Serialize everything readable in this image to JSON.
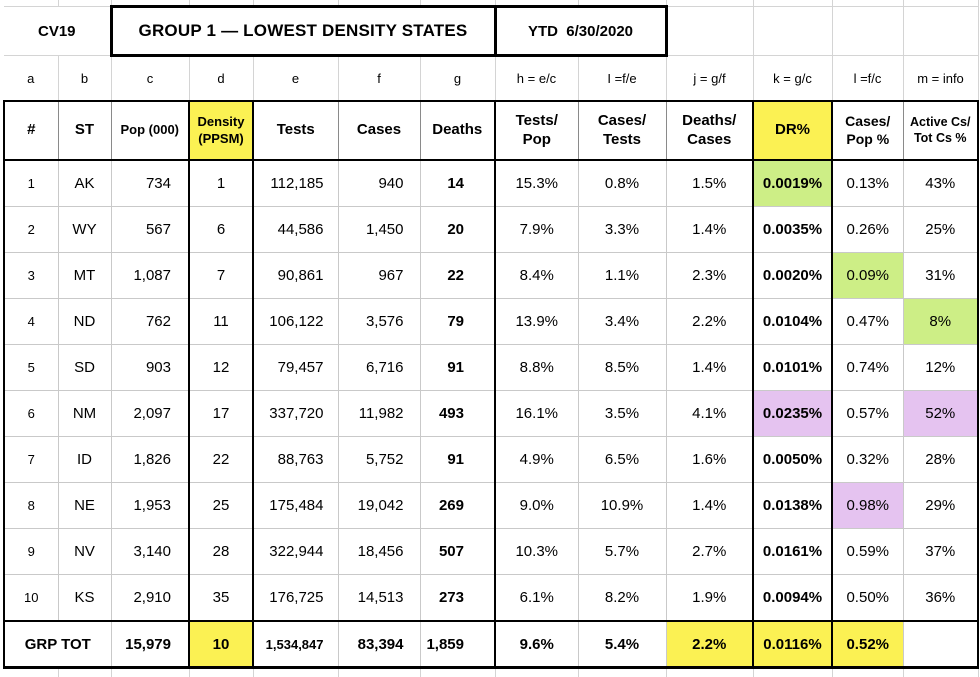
{
  "sheet": {
    "corner_label": "CV19",
    "title": "GROUP 1 — LOWEST DENSITY STATES",
    "period": "YTD  6/30/2020"
  },
  "formula_row": [
    "a",
    "b",
    "c",
    "d",
    "e",
    "f",
    "g",
    "h = e/c",
    "I =f/e",
    "j = g/f",
    "k = g/c",
    "l =f/c",
    "m = info"
  ],
  "header_row": [
    "#",
    "ST",
    "Pop (000)",
    "Density\n(PPSM)",
    "Tests",
    "Cases",
    "Deaths",
    "Tests/\nPop",
    "Cases/\nTests",
    "Deaths/\nCases",
    "DR%",
    "Cases/\nPop %",
    "Active Cs/\nTot Cs %"
  ],
  "rows": [
    [
      "1",
      "AK",
      "734",
      "1",
      "112,185",
      "940",
      "14",
      "15.3%",
      "0.8%",
      "1.5%",
      "0.0019%",
      "0.13%",
      "43%"
    ],
    [
      "2",
      "WY",
      "567",
      "6",
      "44,586",
      "1,450",
      "20",
      "7.9%",
      "3.3%",
      "1.4%",
      "0.0035%",
      "0.26%",
      "25%"
    ],
    [
      "3",
      "MT",
      "1,087",
      "7",
      "90,861",
      "967",
      "22",
      "8.4%",
      "1.1%",
      "2.3%",
      "0.0020%",
      "0.09%",
      "31%"
    ],
    [
      "4",
      "ND",
      "762",
      "11",
      "106,122",
      "3,576",
      "79",
      "13.9%",
      "3.4%",
      "2.2%",
      "0.0104%",
      "0.47%",
      "8%"
    ],
    [
      "5",
      "SD",
      "903",
      "12",
      "79,457",
      "6,716",
      "91",
      "8.8%",
      "8.5%",
      "1.4%",
      "0.0101%",
      "0.74%",
      "12%"
    ],
    [
      "6",
      "NM",
      "2,097",
      "17",
      "337,720",
      "11,982",
      "493",
      "16.1%",
      "3.5%",
      "4.1%",
      "0.0235%",
      "0.57%",
      "52%"
    ],
    [
      "7",
      "ID",
      "1,826",
      "22",
      "88,763",
      "5,752",
      "91",
      "4.9%",
      "6.5%",
      "1.6%",
      "0.0050%",
      "0.32%",
      "28%"
    ],
    [
      "8",
      "NE",
      "1,953",
      "25",
      "175,484",
      "19,042",
      "269",
      "9.0%",
      "10.9%",
      "1.4%",
      "0.0138%",
      "0.98%",
      "29%"
    ],
    [
      "9",
      "NV",
      "3,140",
      "28",
      "322,944",
      "18,456",
      "507",
      "10.3%",
      "5.7%",
      "2.7%",
      "0.0161%",
      "0.59%",
      "37%"
    ],
    [
      "10",
      "KS",
      "2,910",
      "35",
      "176,725",
      "14,513",
      "273",
      "6.1%",
      "8.2%",
      "1.9%",
      "0.0094%",
      "0.50%",
      "36%"
    ]
  ],
  "total_row": {
    "label": "GRP TOT",
    "values": [
      "15,979",
      "10",
      "1,534,847",
      "83,394",
      "1,859",
      "9.6%",
      "5.4%",
      "2.2%",
      "0.0116%",
      "0.52%",
      ""
    ]
  },
  "highlights": {
    "header_cols": {
      "3": "yellow",
      "10": "yellow"
    },
    "cells": [
      {
        "row": 0,
        "col": 10,
        "color": "green"
      },
      {
        "row": 2,
        "col": 11,
        "color": "green"
      },
      {
        "row": 3,
        "col": 12,
        "color": "green"
      },
      {
        "row": 5,
        "col": 10,
        "color": "purple"
      },
      {
        "row": 5,
        "col": 12,
        "color": "purple"
      },
      {
        "row": 7,
        "col": 11,
        "color": "purple"
      }
    ],
    "total_cols": {
      "3": "yellow",
      "9": "yellow",
      "10": "yellow",
      "11": "yellow"
    }
  },
  "colors": {
    "yellow": "#FBF153",
    "green": "#CDEE86",
    "purple": "#E5C3F0",
    "grid_faint": "#d4d4d4",
    "grid_thin": "#c9c9c9",
    "grid_thick": "#000000"
  }
}
